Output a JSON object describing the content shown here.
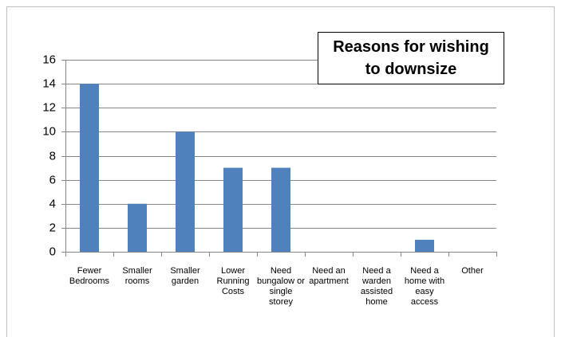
{
  "chart_data": {
    "type": "bar",
    "title": "Reasons for wishing to downsize",
    "categories": [
      "Fewer Bedrooms",
      "Smaller rooms",
      "Smaller garden",
      "Lower Running Costs",
      "Need bungalow or single storey",
      "Need an apartment",
      "Need a warden assisted home",
      "Need a home with easy access",
      "Other"
    ],
    "values": [
      14,
      4,
      10,
      7,
      7,
      0,
      0,
      1,
      0
    ],
    "color": "#4f81bd",
    "ylim": [
      0,
      16
    ],
    "yticks": [
      0,
      2,
      4,
      6,
      8,
      10,
      12,
      14,
      16
    ],
    "grid": true
  }
}
